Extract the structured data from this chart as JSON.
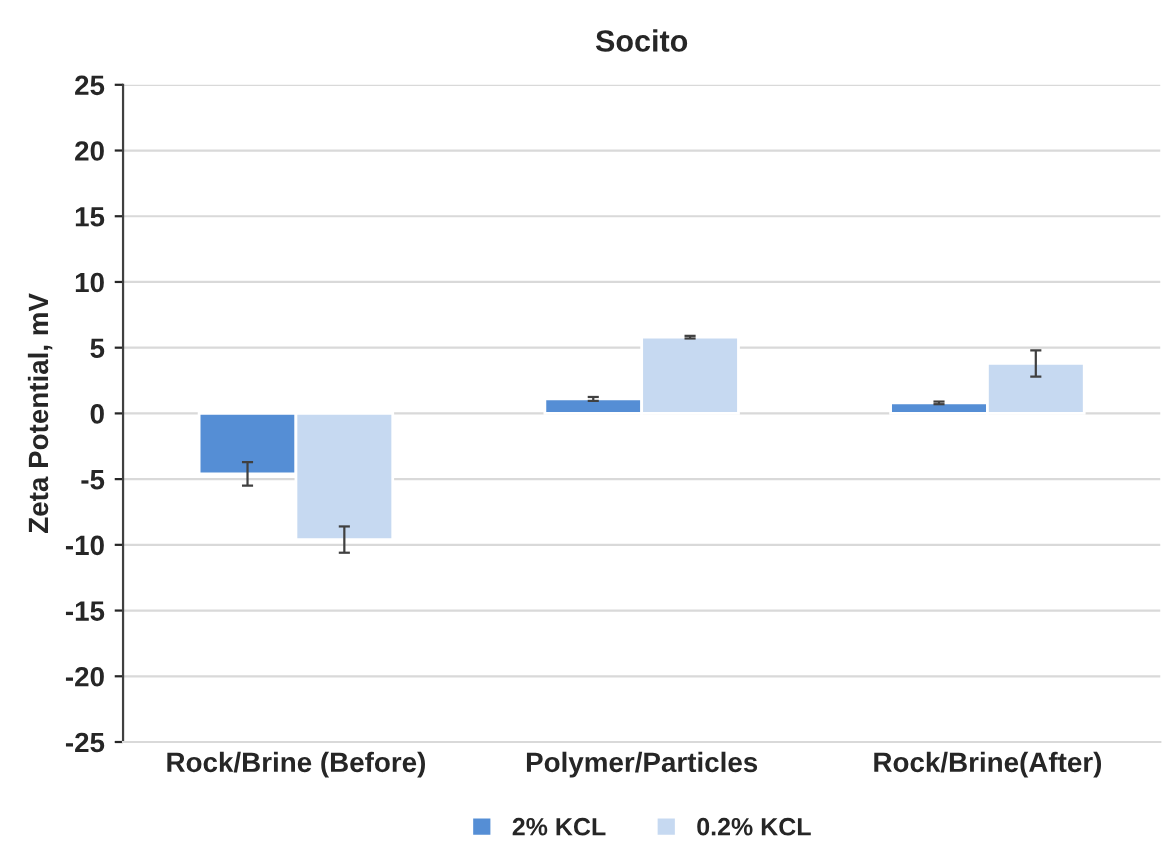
{
  "chart_data": {
    "type": "bar",
    "title": "Socito",
    "ylabel": "Zeta Potential, mV",
    "categories": [
      "Rock/Brine (Before)",
      "Polymer/Particles",
      "Rock/Brine(After)"
    ],
    "series": [
      {
        "name": "2% KCL",
        "color": "#558ed5",
        "values": [
          -4.6,
          1.1,
          0.8
        ],
        "errors": [
          0.9,
          0.15,
          0.1
        ]
      },
      {
        "name": "0.2% KCL",
        "color": "#c6d9f1",
        "values": [
          -9.6,
          5.8,
          3.8
        ],
        "errors": [
          1.0,
          0.1,
          1.0
        ]
      }
    ],
    "ylim": [
      -25,
      25
    ],
    "yticks": [
      -25,
      -20,
      -15,
      -10,
      -5,
      0,
      5,
      10,
      15,
      20,
      25
    ],
    "grid": "y",
    "legend": "bottom"
  }
}
